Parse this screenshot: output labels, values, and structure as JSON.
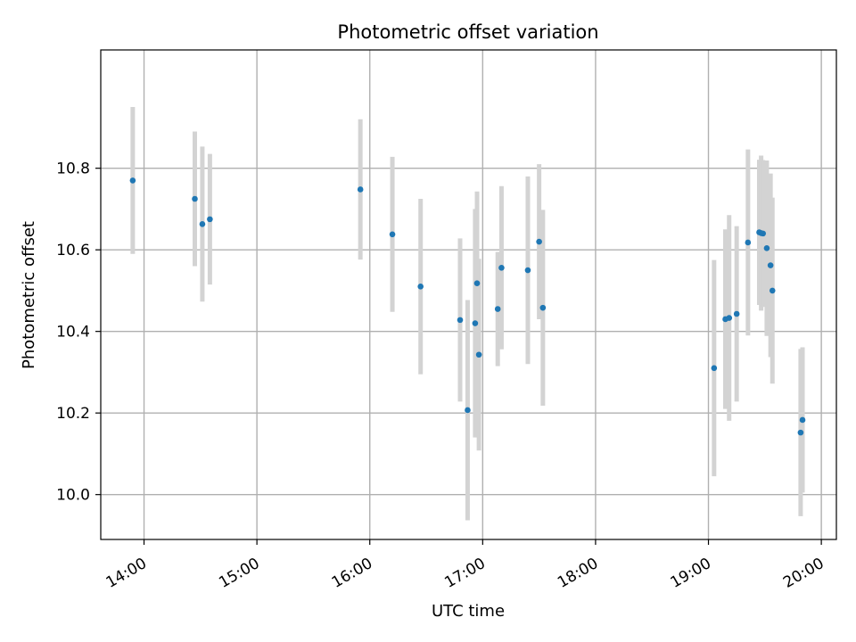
{
  "chart_data": {
    "type": "scatter",
    "title": "Photometric offset variation",
    "xlabel": "UTC time",
    "ylabel": "Photometric offset",
    "x_ticks": [
      "14:00",
      "15:00",
      "16:00",
      "17:00",
      "18:00",
      "19:00",
      "20:00"
    ],
    "y_ticks": [
      "10.0",
      "10.2",
      "10.4",
      "10.6",
      "10.8"
    ],
    "xlim": [
      "13:37",
      "20:08"
    ],
    "ylim": [
      9.89,
      11.09
    ],
    "grid": true,
    "point_color": "#1f77b4",
    "errorbar_color": "#d3d3d3",
    "series": [
      {
        "points": [
          {
            "x": "13:54",
            "y": 10.77,
            "err": 0.18
          },
          {
            "x": "14:27",
            "y": 10.725,
            "err": 0.165
          },
          {
            "x": "14:31",
            "y": 10.663,
            "err": 0.19
          },
          {
            "x": "14:35",
            "y": 10.675,
            "err": 0.16
          },
          {
            "x": "15:55",
            "y": 10.748,
            "err": 0.172
          },
          {
            "x": "16:12",
            "y": 10.638,
            "err": 0.19
          },
          {
            "x": "16:27",
            "y": 10.51,
            "err": 0.215
          },
          {
            "x": "16:48",
            "y": 10.428,
            "err": 0.2
          },
          {
            "x": "16:52",
            "y": 10.207,
            "err": 0.27
          },
          {
            "x": "16:56",
            "y": 10.42,
            "err": 0.28
          },
          {
            "x": "16:57",
            "y": 10.518,
            "err": 0.225
          },
          {
            "x": "16:58",
            "y": 10.343,
            "err": 0.235
          },
          {
            "x": "17:08",
            "y": 10.455,
            "err": 0.14
          },
          {
            "x": "17:10",
            "y": 10.556,
            "err": 0.2
          },
          {
            "x": "17:24",
            "y": 10.55,
            "err": 0.23
          },
          {
            "x": "17:30",
            "y": 10.62,
            "err": 0.19
          },
          {
            "x": "17:32",
            "y": 10.458,
            "err": 0.24
          },
          {
            "x": "19:03",
            "y": 10.31,
            "err": 0.265
          },
          {
            "x": "19:09",
            "y": 10.43,
            "err": 0.22
          },
          {
            "x": "19:11",
            "y": 10.433,
            "err": 0.252
          },
          {
            "x": "19:15",
            "y": 10.443,
            "err": 0.215
          },
          {
            "x": "19:21",
            "y": 10.618,
            "err": 0.228
          },
          {
            "x": "19:27",
            "y": 10.643,
            "err": 0.178
          },
          {
            "x": "19:28",
            "y": 10.641,
            "err": 0.19
          },
          {
            "x": "19:29",
            "y": 10.64,
            "err": 0.18
          },
          {
            "x": "19:31",
            "y": 10.604,
            "err": 0.215
          },
          {
            "x": "19:33",
            "y": 10.562,
            "err": 0.225
          },
          {
            "x": "19:34",
            "y": 10.5,
            "err": 0.228
          },
          {
            "x": "19:49",
            "y": 10.152,
            "err": 0.205
          },
          {
            "x": "19:50",
            "y": 10.183,
            "err": 0.178
          }
        ]
      }
    ]
  }
}
